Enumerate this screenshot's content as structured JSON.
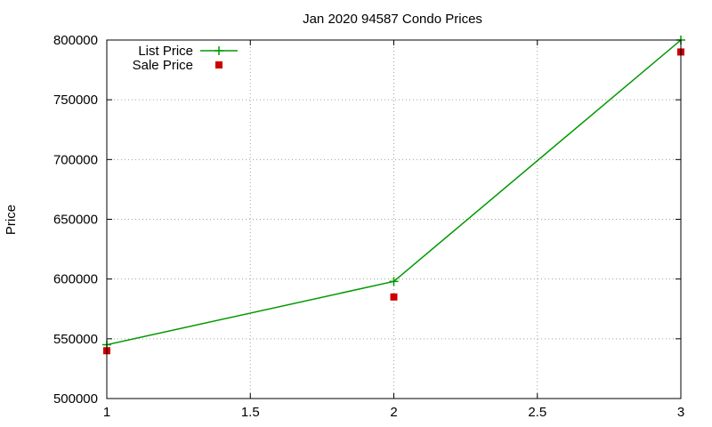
{
  "chart_data": {
    "type": "line",
    "title": "Jan 2020 94587 Condo Prices",
    "xlabel": "",
    "ylabel": "Price",
    "xlim": [
      1,
      3
    ],
    "ylim": [
      500000,
      800000
    ],
    "x_ticks": [
      1,
      1.5,
      2,
      2.5,
      3
    ],
    "y_ticks": [
      500000,
      550000,
      600000,
      650000,
      700000,
      750000,
      800000
    ],
    "grid": true,
    "legend_position": "top-left",
    "series": [
      {
        "name": "List Price",
        "style": "lines+points",
        "marker": "plus",
        "color": "#009900",
        "x": [
          1,
          2,
          3
        ],
        "y": [
          545000,
          598000,
          800000
        ]
      },
      {
        "name": "Sale Price",
        "style": "points",
        "marker": "square",
        "color": "#cc0000",
        "x": [
          1,
          2,
          3
        ],
        "y": [
          540000,
          585000,
          790000
        ]
      }
    ]
  }
}
